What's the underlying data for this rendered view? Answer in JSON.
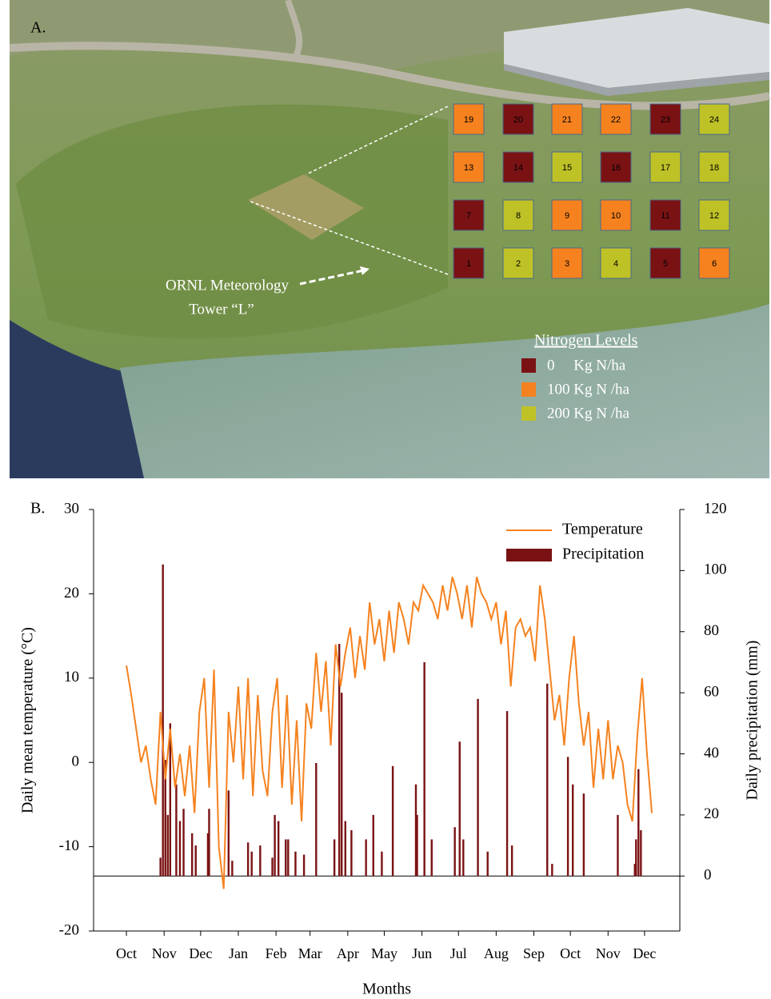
{
  "panel_a": {
    "label": "A.",
    "tower_label": [
      "ORNL Meteorology",
      "Tower “L”"
    ],
    "legend_title": "Nitrogen Levels",
    "levels": [
      {
        "label": "0     Kg N/ha",
        "color": "#7a1214"
      },
      {
        "label": "100 Kg N /ha",
        "color": "#f5821f"
      },
      {
        "label": "200 Kg N /ha",
        "color": "#bfc227"
      }
    ],
    "plots": [
      {
        "number": "19",
        "level": 1
      },
      {
        "number": "20",
        "level": 0
      },
      {
        "number": "21",
        "level": 1
      },
      {
        "number": "22",
        "level": 1
      },
      {
        "number": "23",
        "level": 0
      },
      {
        "number": "24",
        "level": 2
      },
      {
        "number": "13",
        "level": 1
      },
      {
        "number": "14",
        "level": 0
      },
      {
        "number": "15",
        "level": 2
      },
      {
        "number": "16",
        "level": 0
      },
      {
        "number": "17",
        "level": 2
      },
      {
        "number": "18",
        "level": 2
      },
      {
        "number": "7",
        "level": 0
      },
      {
        "number": "8",
        "level": 2
      },
      {
        "number": "9",
        "level": 1
      },
      {
        "number": "10",
        "level": 1
      },
      {
        "number": "11",
        "level": 0
      },
      {
        "number": "12",
        "level": 2
      },
      {
        "number": "1",
        "level": 0
      },
      {
        "number": "2",
        "level": 2
      },
      {
        "number": "3",
        "level": 1
      },
      {
        "number": "4",
        "level": 2
      },
      {
        "number": "5",
        "level": 0
      },
      {
        "number": "6",
        "level": 1
      }
    ]
  },
  "chart_data": {
    "type": "line",
    "panel_label": "B.",
    "x_label": "Months",
    "y_label": "Daily mean temperature (°C)",
    "y2_label": "Daily precipitation (mm)",
    "xlim": [
      -27,
      455
    ],
    "xticks": [
      {
        "value": 0,
        "label": "Oct"
      },
      {
        "value": 31,
        "label": "Nov"
      },
      {
        "value": 61,
        "label": "Dec"
      },
      {
        "value": 92,
        "label": "Jan"
      },
      {
        "value": 123,
        "label": "Feb"
      },
      {
        "value": 151,
        "label": "Mar"
      },
      {
        "value": 182,
        "label": "Apr"
      },
      {
        "value": 212,
        "label": "May"
      },
      {
        "value": 243,
        "label": "Jun"
      },
      {
        "value": 273,
        "label": "Jul"
      },
      {
        "value": 304,
        "label": "Aug"
      },
      {
        "value": 335,
        "label": "Sep"
      },
      {
        "value": 365,
        "label": "Oct"
      },
      {
        "value": 396,
        "label": "Nov"
      },
      {
        "value": 426,
        "label": "Dec"
      }
    ],
    "ylim": [
      -20,
      30
    ],
    "yticks": [
      -20,
      -10,
      0,
      10,
      20,
      30
    ],
    "y2lim": [
      -18,
      120
    ],
    "y2ticks": [
      0,
      20,
      40,
      60,
      80,
      100,
      120
    ],
    "legend": "upper right",
    "series": [
      {
        "name": "Temperature",
        "type": "line",
        "color": "#f5821f",
        "x": [
          0,
          4,
          8,
          12,
          16,
          20,
          24,
          28,
          32,
          36,
          40,
          44,
          48,
          52,
          56,
          60,
          64,
          68,
          72,
          76,
          80,
          84,
          88,
          92,
          96,
          100,
          104,
          108,
          112,
          116,
          120,
          124,
          128,
          132,
          136,
          140,
          144,
          148,
          152,
          156,
          160,
          164,
          168,
          172,
          176,
          180,
          184,
          188,
          192,
          196,
          200,
          204,
          208,
          212,
          216,
          220,
          224,
          228,
          232,
          236,
          240,
          244,
          248,
          252,
          256,
          260,
          264,
          268,
          272,
          276,
          280,
          284,
          288,
          292,
          296,
          300,
          304,
          308,
          312,
          316,
          320,
          324,
          328,
          332,
          336,
          340,
          344,
          348,
          352,
          356,
          360,
          364,
          368,
          372,
          376,
          380,
          384,
          388,
          392,
          396,
          400,
          404,
          408,
          412,
          416,
          420,
          424,
          428,
          432
        ],
        "values": [
          11.5,
          8,
          4,
          0,
          2,
          -2,
          -5,
          6,
          -2,
          4,
          -3,
          1,
          -4,
          2,
          -6,
          6,
          10,
          -3,
          11,
          -10,
          -15,
          6,
          0,
          9,
          -2,
          10,
          -4,
          8,
          -1,
          -4,
          6,
          10,
          -3,
          8,
          -5,
          5,
          -7,
          7,
          4,
          13,
          6,
          12,
          2,
          14,
          9,
          13,
          16,
          10,
          15,
          11,
          19,
          14,
          17,
          12,
          18,
          13,
          19,
          17,
          14,
          19,
          18,
          21,
          20,
          19,
          17,
          21,
          18,
          22,
          20,
          17,
          21,
          16,
          22,
          20,
          19,
          17,
          19,
          14,
          18,
          9,
          16,
          17,
          15,
          16,
          12,
          21,
          17,
          11,
          5,
          8,
          2,
          10,
          15,
          7,
          2,
          6,
          -3,
          4,
          -2,
          5,
          -2,
          2,
          0,
          -5,
          -7,
          3,
          10,
          1,
          -6
        ]
      },
      {
        "name": "Precipitation",
        "type": "bar",
        "color": "#7a1214",
        "axis": "y2",
        "x": [
          28,
          30,
          32,
          34,
          36,
          41,
          44,
          47,
          54,
          57,
          67,
          68,
          84,
          87,
          100,
          103,
          110,
          120,
          122,
          125,
          131,
          133,
          139,
          146,
          156,
          171,
          175,
          177,
          180,
          185,
          197,
          203,
          210,
          219,
          238,
          239,
          245,
          251,
          270,
          274,
          277,
          289,
          297,
          313,
          317,
          346,
          350,
          363,
          367,
          376,
          404,
          418,
          419,
          421,
          423
        ],
        "values": [
          6,
          102,
          38,
          20,
          50,
          30,
          18,
          22,
          14,
          10,
          14,
          22,
          28,
          5,
          11,
          8,
          10,
          6,
          20,
          18,
          12,
          12,
          8,
          7,
          37,
          12,
          76,
          60,
          18,
          15,
          12,
          20,
          8,
          36,
          30,
          20,
          70,
          12,
          16,
          44,
          12,
          58,
          8,
          54,
          10,
          63,
          4,
          39,
          30,
          27,
          20,
          4,
          12,
          35,
          15
        ]
      }
    ]
  }
}
